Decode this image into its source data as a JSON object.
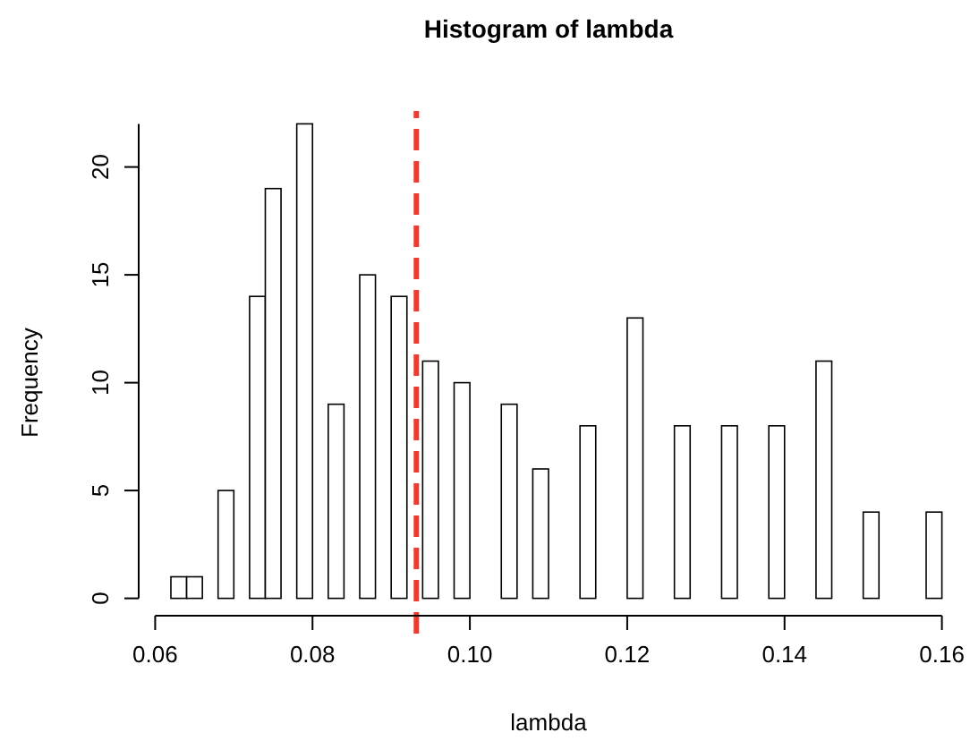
{
  "chart_data": {
    "type": "histogram",
    "title": "Histogram of lambda",
    "xlabel": "lambda",
    "ylabel": "Frequency",
    "bins": [
      0.062,
      0.064,
      0.066,
      0.068,
      0.07,
      0.072,
      0.074,
      0.076,
      0.078,
      0.08,
      0.082,
      0.084,
      0.086,
      0.088,
      0.09,
      0.092,
      0.094,
      0.096,
      0.098,
      0.1,
      0.102,
      0.104,
      0.106,
      0.108,
      0.11,
      0.112,
      0.114,
      0.116,
      0.118,
      0.12,
      0.122,
      0.124,
      0.126,
      0.128,
      0.13,
      0.132,
      0.134,
      0.136,
      0.138,
      0.14,
      0.142,
      0.144,
      0.146,
      0.148,
      0.15,
      0.152,
      0.154,
      0.156,
      0.158,
      0.16
    ],
    "values": [
      1,
      1,
      0,
      5,
      0,
      14,
      19,
      0,
      22,
      0,
      9,
      0,
      15,
      0,
      14,
      0,
      11,
      0,
      10,
      0,
      0,
      9,
      0,
      6,
      0,
      0,
      8,
      0,
      0,
      13,
      0,
      0,
      8,
      0,
      0,
      8,
      0,
      0,
      8,
      0,
      0,
      11,
      0,
      0,
      4,
      0,
      0,
      0,
      4
    ],
    "color": "#ffffff",
    "xlim": [
      0.06,
      0.16
    ],
    "xticks": [
      {
        "value": 0.06,
        "label": "0.06"
      },
      {
        "value": 0.08,
        "label": "0.08"
      },
      {
        "value": 0.1,
        "label": "0.10"
      },
      {
        "value": 0.12,
        "label": "0.12"
      },
      {
        "value": 0.14,
        "label": "0.14"
      },
      {
        "value": 0.16,
        "label": "0.16"
      }
    ],
    "ylim": [
      0,
      22
    ],
    "yticks": [
      0,
      5,
      10,
      15,
      20
    ],
    "ref_lines": [
      {
        "axis": "x",
        "value": 0.0932,
        "color": "#ee3b2b",
        "line_style": "dashed"
      }
    ],
    "tick_labels": "xy"
  }
}
